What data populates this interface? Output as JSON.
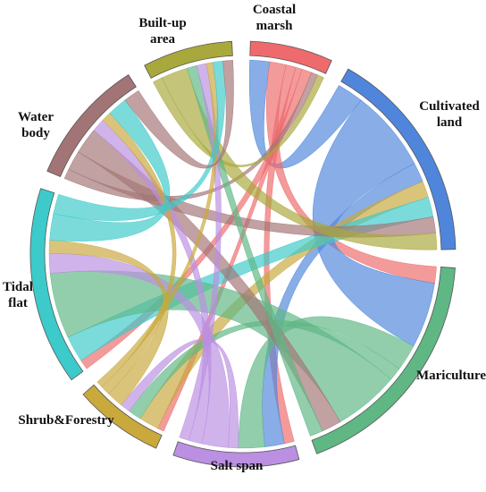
{
  "chart_data": {
    "type": "chord",
    "categories": [
      "Coastal marsh",
      "Cultivated land",
      "Mariculture",
      "Salt span",
      "Shrub&Forestry",
      "Tidal flat",
      "Water body",
      "Built-up area"
    ],
    "colors": [
      "#ee6a6c",
      "#4f86dc",
      "#5fb784",
      "#bb8fe2",
      "#c9a83c",
      "#3dcaca",
      "#a37476",
      "#a8a83c"
    ],
    "matrix": [
      [
        0,
        6,
        5,
        3,
        2,
        3,
        2,
        2
      ],
      [
        8,
        0,
        25,
        6,
        5,
        6,
        5,
        5
      ],
      [
        5,
        20,
        0,
        8,
        4,
        20,
        6,
        4
      ],
      [
        3,
        6,
        8,
        0,
        3,
        8,
        4,
        3
      ],
      [
        2,
        6,
        4,
        3,
        0,
        5,
        3,
        2
      ],
      [
        3,
        8,
        20,
        6,
        4,
        0,
        8,
        6
      ],
      [
        3,
        6,
        8,
        4,
        3,
        6,
        0,
        5
      ],
      [
        3,
        8,
        3,
        3,
        2,
        3,
        3,
        0
      ]
    ]
  }
}
